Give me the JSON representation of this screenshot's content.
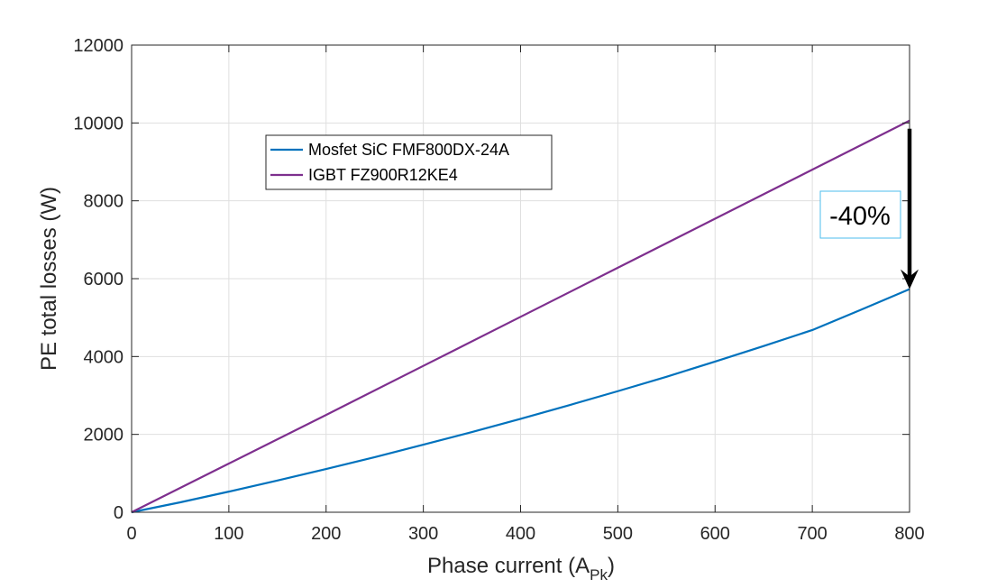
{
  "chart_data": {
    "type": "line",
    "xlabel": "Phase current (A",
    "xlabel_subscript": "Pk",
    "xlabel_suffix": ")",
    "ylabel": "PE total losses (W)",
    "xlim": [
      0,
      800
    ],
    "ylim": [
      0,
      12000
    ],
    "xticks": [
      0,
      100,
      200,
      300,
      400,
      500,
      600,
      700,
      800
    ],
    "yticks": [
      0,
      2000,
      4000,
      6000,
      8000,
      10000,
      12000
    ],
    "xtick_labels": [
      "0",
      "100",
      "200",
      "300",
      "400",
      "500",
      "600",
      "700",
      "800"
    ],
    "ytick_labels": [
      "0",
      "2000",
      "4000",
      "6000",
      "8000",
      "10000",
      "12000"
    ],
    "grid": true,
    "legend_position": "upper-left-inside",
    "series": [
      {
        "name": "Mosfet SiC FMF800DX-24A",
        "color": "#0072BD",
        "x": [
          0,
          50,
          100,
          150,
          200,
          250,
          300,
          350,
          400,
          450,
          500,
          550,
          600,
          650,
          700,
          750,
          800
        ],
        "y": [
          0,
          255,
          530,
          815,
          1110,
          1415,
          1735,
          2060,
          2400,
          2750,
          3110,
          3480,
          3870,
          4270,
          4680,
          5200,
          5730
        ]
      },
      {
        "name": "IGBT FZ900R12KE4",
        "color": "#7E2F8E",
        "x": [
          0,
          100,
          200,
          300,
          400,
          500,
          600,
          700,
          800
        ],
        "y": [
          0,
          1250,
          2500,
          3760,
          5020,
          6280,
          7540,
          8800,
          10060
        ]
      }
    ],
    "annotation": {
      "text": "-40%",
      "arrow_x": 800,
      "arrow_from_y": 9850,
      "arrow_to_y": 5730
    }
  }
}
